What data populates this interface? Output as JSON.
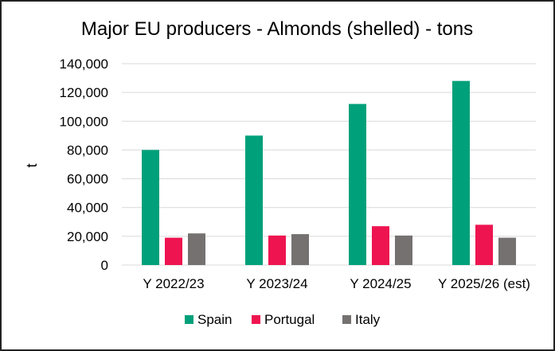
{
  "chart_data": {
    "type": "bar",
    "title": "Major EU producers - Almonds (shelled) - tons",
    "xlabel": "",
    "ylabel": "t",
    "ylim": [
      0,
      140000
    ],
    "yticks": [
      0,
      20000,
      40000,
      60000,
      80000,
      100000,
      120000,
      140000
    ],
    "ytick_labels": [
      "0",
      "20,000",
      "40,000",
      "60,000",
      "80,000",
      "100,000",
      "120,000",
      "140,000"
    ],
    "grid": true,
    "legend_position": "bottom",
    "categories": [
      "Y 2022/23",
      "Y 2023/24",
      "Y 2024/25",
      "Y 2025/26 (est)"
    ],
    "series": [
      {
        "name": "Spain",
        "color": "#00A07A",
        "values": [
          80000,
          90000,
          112000,
          128000
        ]
      },
      {
        "name": "Portugal",
        "color": "#EE1450",
        "values": [
          19000,
          20500,
          27000,
          28000
        ]
      },
      {
        "name": "Italy",
        "color": "#767171",
        "values": [
          22000,
          21500,
          20500,
          19000
        ]
      }
    ]
  }
}
